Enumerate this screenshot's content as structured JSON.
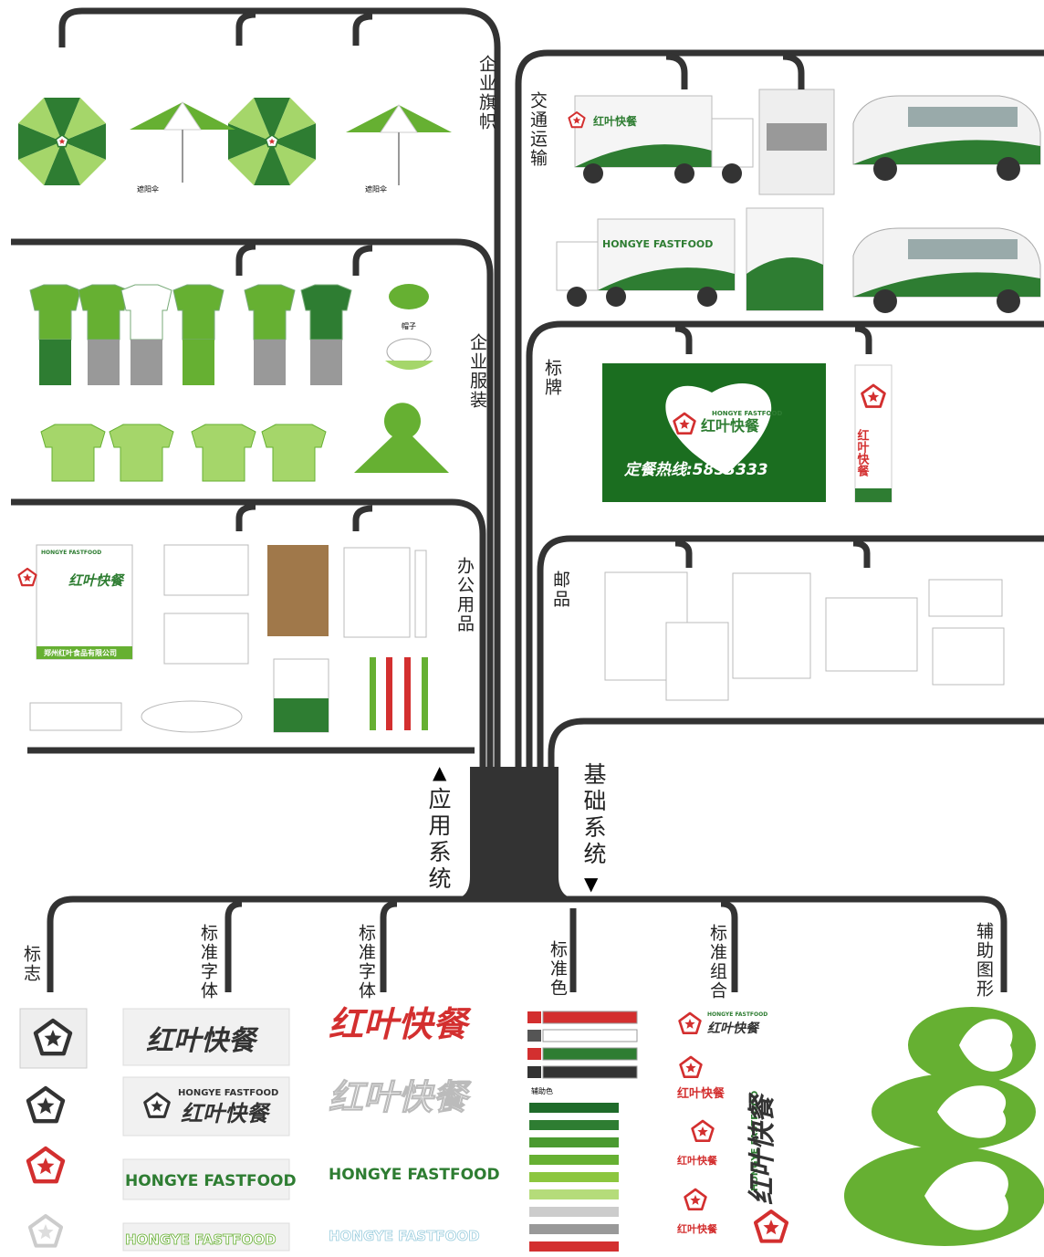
{
  "application_system": {
    "label": "应用系统",
    "sections": [
      {
        "label": "企业旗帜",
        "captions": [
          "遮阳伞",
          "遮阳伞"
        ]
      },
      {
        "label": "交通运输"
      },
      {
        "label": "企业服装",
        "captions": [
          "帽子"
        ]
      },
      {
        "label": "标牌",
        "hotline": "定餐热线:5853333"
      },
      {
        "label": "办公用品",
        "company": "郑州红叶食品有限公司"
      },
      {
        "label": "邮品"
      }
    ]
  },
  "basic_system": {
    "label": "基础系统",
    "sections": [
      {
        "label": "标志"
      },
      {
        "label": "标准字体"
      },
      {
        "label": "标准字体"
      },
      {
        "label": "标准色",
        "caption": "辅助色"
      },
      {
        "label": "标准组合"
      },
      {
        "label": "辅助图形"
      }
    ]
  },
  "brand": {
    "name_en": "HONGYE FASTFOOD",
    "name_cn": "红叶快餐"
  }
}
